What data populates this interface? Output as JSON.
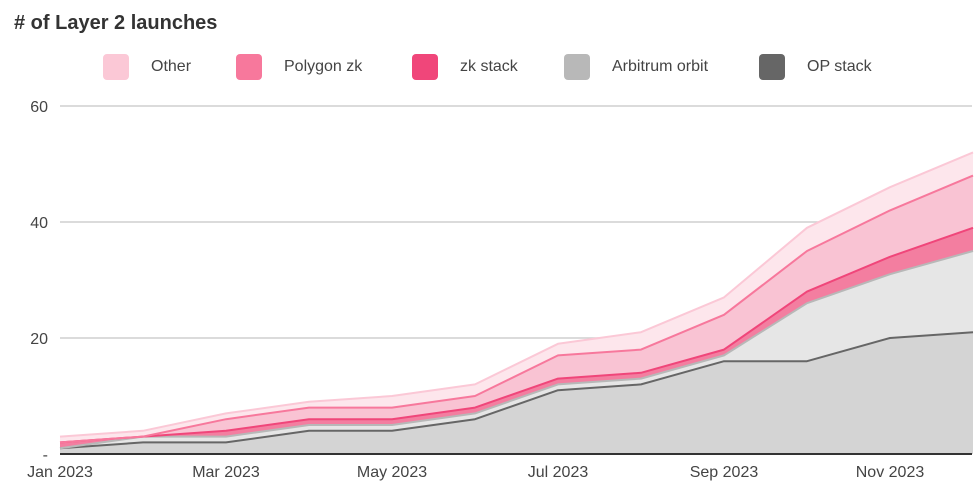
{
  "chart_data": {
    "type": "area",
    "title": "# of Layer 2 launches",
    "stacked": true,
    "x": [
      "Jan 2023",
      "Feb 2023",
      "Mar 2023",
      "Apr 2023",
      "May 2023",
      "Jun 2023",
      "Jul 2023",
      "Aug 2023",
      "Sep 2023",
      "Oct 2023",
      "Nov 2023",
      "Dec 2023"
    ],
    "x_tick_labels": [
      "Jan 2023",
      "Mar 2023",
      "May 2023",
      "Jul 2023",
      "Sep 2023",
      "Nov 2023"
    ],
    "y_tick_labels": [
      "60",
      "40",
      "20",
      "-"
    ],
    "ylim": [
      0,
      60
    ],
    "grid": true,
    "legend_position": "top",
    "series": [
      {
        "name": "OP stack",
        "color": "#666666",
        "fill": "#d4d4d4",
        "values": [
          1,
          2,
          2,
          4,
          4,
          6,
          11,
          12,
          16,
          16,
          20,
          21
        ]
      },
      {
        "name": "Arbitrum orbit",
        "color": "#b8b8b8",
        "fill": "#e6e6e6",
        "values": [
          0,
          1,
          1,
          1,
          1,
          1,
          1,
          1,
          1,
          10,
          11,
          14
        ]
      },
      {
        "name": "zk stack",
        "color": "#f0467a",
        "fill": "#f37ea0",
        "values": [
          1,
          0,
          1,
          1,
          1,
          1,
          1,
          1,
          1,
          2,
          3,
          4
        ]
      },
      {
        "name": "Polygon zk",
        "color": "#f7789c",
        "fill": "#f9c3d3",
        "values": [
          0,
          0,
          2,
          2,
          2,
          2,
          4,
          4,
          6,
          7,
          8,
          9
        ]
      },
      {
        "name": "Other",
        "color": "#fbc8d6",
        "fill": "#fde6ec",
        "values": [
          1,
          1,
          1,
          1,
          2,
          2,
          2,
          3,
          3,
          4,
          4,
          4
        ]
      }
    ],
    "legend_order": [
      "Other",
      "Polygon zk",
      "zk stack",
      "Arbitrum orbit",
      "OP stack"
    ]
  }
}
